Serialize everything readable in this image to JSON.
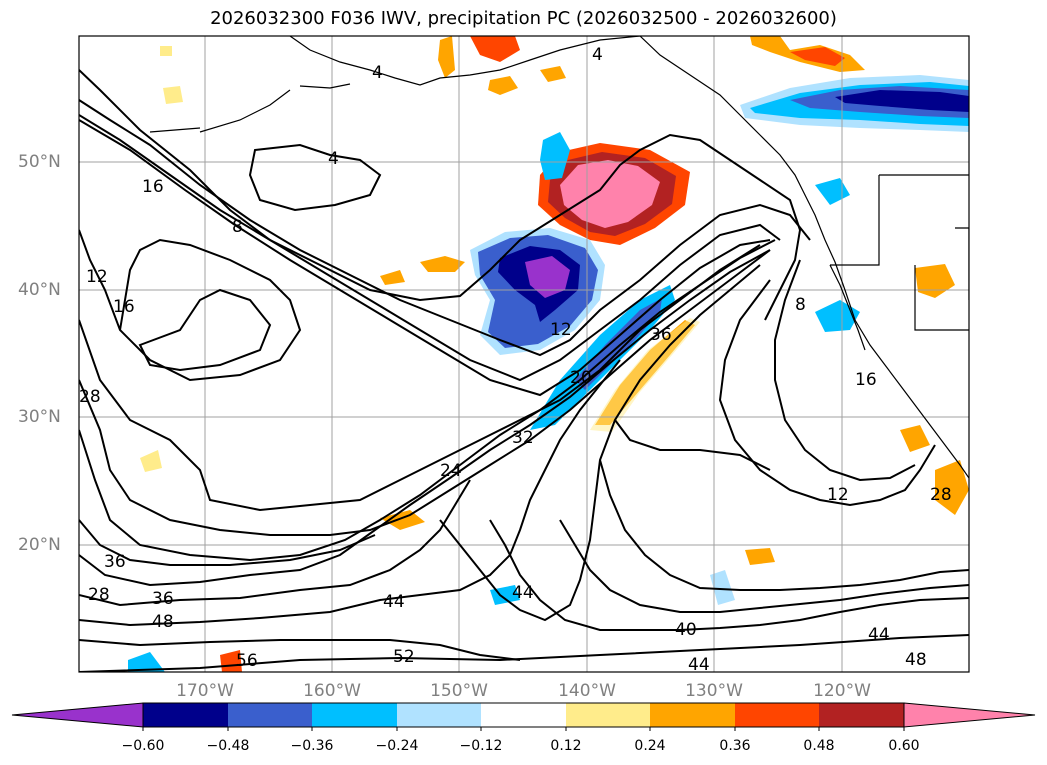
{
  "title": "2026032300 F036 IWV, precipitation PC (2026032500 - 2026032600)",
  "map": {
    "lat_labels": [
      "50°N",
      "40°N",
      "30°N",
      "20°N"
    ],
    "lon_labels": [
      "170°W",
      "160°W",
      "150°W",
      "140°W",
      "130°W",
      "120°W"
    ],
    "grid": true,
    "contour_color": "#000000",
    "contour_labels": [
      "4",
      "4",
      "4",
      "8",
      "8",
      "12",
      "12",
      "16",
      "16",
      "20",
      "24",
      "28",
      "28",
      "32",
      "36",
      "36",
      "36",
      "40",
      "44",
      "44",
      "44",
      "44",
      "48",
      "48",
      "52",
      "56",
      "12",
      "16",
      "28"
    ]
  },
  "colorbar": {
    "ticks": [
      "−0.60",
      "−0.48",
      "−0.36",
      "−0.24",
      "−0.12",
      "0.12",
      "0.24",
      "0.36",
      "0.48",
      "0.60"
    ],
    "colors": [
      "#9932CC",
      "#00008B",
      "#3A5FCD",
      "#00BFFF",
      "#B0E2FF",
      "#FFFFFF",
      "#FFEC8B",
      "#FFA500",
      "#FF4500",
      "#B22222",
      "#FF82AB"
    ]
  }
}
